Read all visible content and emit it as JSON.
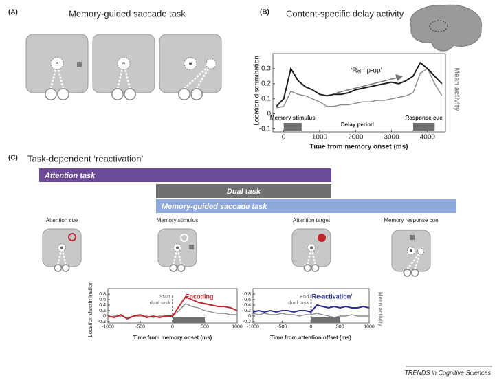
{
  "panel_a": {
    "label": "(A)",
    "title": "Memory-guided saccade task"
  },
  "panel_b": {
    "label": "(B)",
    "title": "Content-specific delay activity"
  },
  "panel_c": {
    "label": "(C)",
    "title": "Task-dependent ‘reactivation’",
    "tasks": [
      {
        "label": "Attention task",
        "color": "#6b4b97"
      },
      {
        "label": "Dual task",
        "color": "#707070"
      },
      {
        "label": "Memory-guided saccade task",
        "color": "#8fa9dc"
      }
    ],
    "stages": [
      "Attention cue",
      "Memory stimulus",
      "Attention target",
      "Memory response cue"
    ]
  },
  "chart_data": [
    {
      "type": "line",
      "ylabel": "Location discrimination",
      "y2label": "Mean activity",
      "xlabel": "Time from memory onset (ms)",
      "x": [
        -200,
        0,
        200,
        400,
        600,
        800,
        1000,
        1200,
        1400,
        1600,
        1800,
        2000,
        2200,
        2400,
        2600,
        2800,
        3000,
        3200,
        3400,
        3600,
        3800,
        4000,
        4200,
        4400
      ],
      "series": [
        {
          "color": "#1e1e1e",
          "values": [
            0.05,
            0.1,
            0.3,
            0.22,
            0.18,
            0.16,
            0.13,
            0.12,
            0.13,
            0.13,
            0.14,
            0.16,
            0.17,
            0.18,
            0.19,
            0.2,
            0.21,
            0.2,
            0.22,
            0.25,
            0.34,
            0.3,
            0.25,
            0.2
          ]
        },
        {
          "color": "#8a8a8a",
          "values": [
            0.04,
            0.05,
            0.15,
            0.13,
            0.12,
            0.1,
            0.08,
            0.05,
            0.05,
            0.06,
            0.06,
            0.07,
            0.08,
            0.08,
            0.09,
            0.09,
            0.1,
            0.11,
            0.12,
            0.14,
            0.27,
            0.3,
            0.2,
            0.12
          ]
        }
      ],
      "xlim": [
        -300,
        4500
      ],
      "xticks": [
        0,
        1000,
        2000,
        3000,
        4000
      ],
      "ylim": [
        -0.12,
        0.4
      ],
      "yticks": [
        -0.1,
        0,
        0.1,
        0.2,
        0.3
      ],
      "annotation": "‘Ramp-up’",
      "period_label": "Delay period",
      "epochs": [
        {
          "label": "Memory stimulus",
          "start": 0,
          "end": 500
        },
        {
          "label": "Response cue",
          "start": 3600,
          "end": 4200
        }
      ]
    },
    {
      "type": "line",
      "ylabel": "Location discrimination",
      "xlabel": "Time from memory onset (ms)",
      "x": [
        -1000,
        -900,
        -800,
        -700,
        -600,
        -500,
        -400,
        -300,
        -200,
        -100,
        0,
        100,
        200,
        300,
        400,
        500,
        600,
        700,
        800,
        900,
        1000
      ],
      "series": [
        {
          "color": "#c0272d",
          "values": [
            0,
            -0.05,
            0.05,
            -0.1,
            0,
            0.05,
            -0.05,
            0,
            -0.05,
            0,
            0,
            0.35,
            0.7,
            0.6,
            0.5,
            0.45,
            0.4,
            0.35,
            0.35,
            0.3,
            0.2
          ]
        },
        {
          "color": "#8a8a8a",
          "values": [
            -0.05,
            0,
            0,
            -0.05,
            0,
            0,
            0,
            -0.05,
            0,
            0,
            0,
            0.2,
            0.45,
            0.35,
            0.3,
            0.2,
            0.15,
            0.1,
            0.1,
            0.05,
            0.05
          ]
        }
      ],
      "xlim": [
        -1000,
        1000
      ],
      "xticks": [
        -1000,
        -500,
        0,
        500,
        1000
      ],
      "ylim": [
        -0.25,
        1.0
      ],
      "yticks": [
        -0.2,
        0,
        0.2,
        0.4,
        0.6,
        0.8
      ],
      "annotation": "Encoding",
      "event": {
        "x": 0,
        "label": [
          "Start",
          "dual task"
        ]
      },
      "epochs": [
        {
          "start": 0,
          "end": 500
        }
      ]
    },
    {
      "type": "line",
      "y2label": "Mean activity",
      "xlabel": "Time from attention offset (ms)",
      "x": [
        -1000,
        -900,
        -800,
        -700,
        -600,
        -500,
        -400,
        -300,
        -200,
        -100,
        0,
        100,
        200,
        300,
        400,
        500,
        600,
        700,
        800,
        900,
        1000
      ],
      "series": [
        {
          "color": "#2b2b9a",
          "values": [
            0.15,
            0.2,
            0.15,
            0.2,
            0.15,
            0.2,
            0.2,
            0.15,
            0.2,
            0.2,
            0.15,
            0.4,
            0.35,
            0.3,
            0.35,
            0.3,
            0.35,
            0.3,
            0.3,
            0.35,
            0.3
          ]
        },
        {
          "color": "#8a8a8a",
          "values": [
            0.1,
            0.05,
            0.1,
            0.05,
            0.05,
            0.1,
            0.05,
            0.05,
            0,
            0.05,
            0.05,
            0.1,
            0.05,
            0,
            -0.05,
            0,
            0,
            0.05,
            0,
            0,
            0
          ]
        }
      ],
      "xlim": [
        -1000,
        1000
      ],
      "xticks": [
        -1000,
        -500,
        0,
        500,
        1000
      ],
      "ylim": [
        -0.25,
        1.0
      ],
      "yticks": [
        -0.2,
        0,
        0.2,
        0.4,
        0.6,
        0.8
      ],
      "annotation": "‘Re-activation’",
      "event": {
        "x": 0,
        "label": [
          "End",
          "dual task"
        ]
      },
      "epochs": [
        {
          "start": 0,
          "end": 500
        }
      ]
    }
  ],
  "footer": "TRENDS in Cognitive Sciences"
}
